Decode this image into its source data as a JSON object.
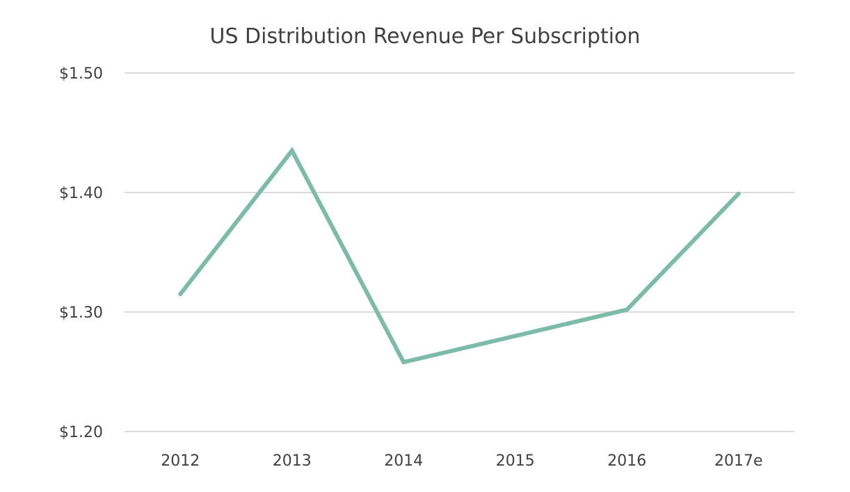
{
  "chart_data": {
    "type": "line",
    "title": "US Distribution Revenue Per Subscription",
    "xlabel": "",
    "ylabel": "",
    "categories": [
      "2012",
      "2013",
      "2014",
      "2015",
      "2016",
      "2017e"
    ],
    "series": [
      {
        "name": "Revenue Per Subscription",
        "color": "#7dbba9",
        "values": [
          1.315,
          1.435,
          1.258,
          1.28,
          1.302,
          1.399
        ]
      }
    ],
    "ylim": [
      1.2,
      1.5
    ],
    "yticks": [
      1.2,
      1.3,
      1.4,
      1.5
    ],
    "ytick_labels": [
      "$1.20",
      "$1.30",
      "$1.40",
      "$1.50"
    ],
    "grid": "horizontal",
    "legend": "none"
  }
}
